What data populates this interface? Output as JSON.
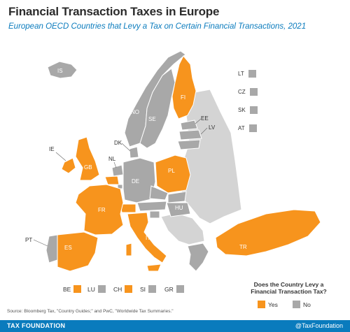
{
  "title": "Financial Transaction Taxes in Europe",
  "subtitle": "European OECD Countries that Levy a Tax on Certain Financial Transactions, 2021",
  "colors": {
    "yes": "#f7941d",
    "no": "#a8a8a8",
    "non_oecd": "#d4d4d4",
    "accent": "#0a7bbd"
  },
  "countries_yes": [
    "FI",
    "IE",
    "GB",
    "PL",
    "FR",
    "ES",
    "IT",
    "TR",
    "BE",
    "CH"
  ],
  "countries_no": [
    "IS",
    "NO",
    "SE",
    "DK",
    "EE",
    "LV",
    "LT",
    "NL",
    "DE",
    "CZ",
    "SK",
    "AT",
    "HU",
    "SI",
    "PT",
    "LU",
    "GR"
  ],
  "map_labels": {
    "is": "IS",
    "no": "NO",
    "se": "SE",
    "fi": "FI",
    "ee": "EE",
    "lv": "LV",
    "dk": "DK",
    "ie": "IE",
    "gb": "GB",
    "nl": "NL",
    "de": "DE",
    "pl": "PL",
    "fr": "FR",
    "hu": "HU",
    "pt": "PT",
    "es": "ES",
    "it": "IT",
    "tr": "TR"
  },
  "inset_right": [
    {
      "code": "LT"
    },
    {
      "code": "CZ"
    },
    {
      "code": "SK"
    },
    {
      "code": "AT"
    }
  ],
  "inset_bottom": [
    {
      "code": "BE",
      "status": "yes"
    },
    {
      "code": "LU",
      "status": "no"
    },
    {
      "code": "CH",
      "status": "yes"
    },
    {
      "code": "SI",
      "status": "no"
    },
    {
      "code": "GR",
      "status": "no"
    }
  ],
  "legend": {
    "question": "Does the Country Levy a Financial Transaction Tax?",
    "yes": "Yes",
    "no": "No"
  },
  "source": "Source: Bloomberg Tax, \"Country Guides;\" and PwC, \"Worldwide Tax Summaries.\"",
  "footer": {
    "org": "TAX FOUNDATION",
    "handle": "@TaxFoundation"
  }
}
